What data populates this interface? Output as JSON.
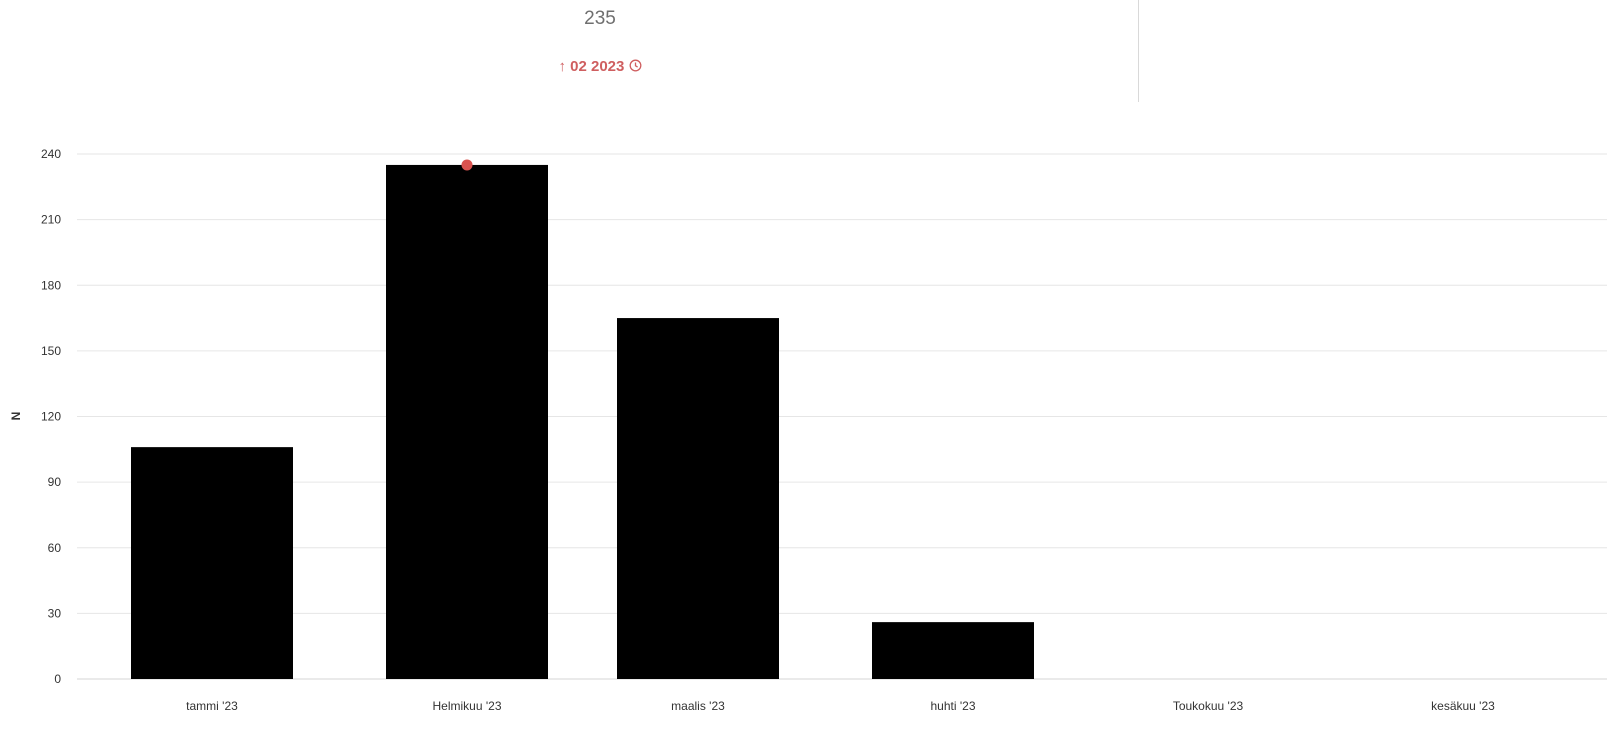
{
  "kpi": {
    "value": "235",
    "trend_arrow": "↑",
    "trend_label": "02 2023",
    "trend_icon": "clock-icon",
    "trend_color": "#cf5f60"
  },
  "chart_data": {
    "type": "bar",
    "categories": [
      "tammi '23",
      "Helmikuu '23",
      "maalis '23",
      "huhti '23",
      "Toukokuu '23",
      "kesäkuu '23"
    ],
    "values": [
      106,
      235,
      165,
      26,
      0,
      0
    ],
    "ylabel": "N",
    "ylim": [
      0,
      240
    ],
    "yticks": [
      0,
      30,
      60,
      90,
      120,
      150,
      180,
      210,
      240
    ],
    "grid": true,
    "bar_color": "#000000",
    "highlight": {
      "category": "Helmikuu '23",
      "value": 235,
      "color": "#d9534f"
    }
  }
}
